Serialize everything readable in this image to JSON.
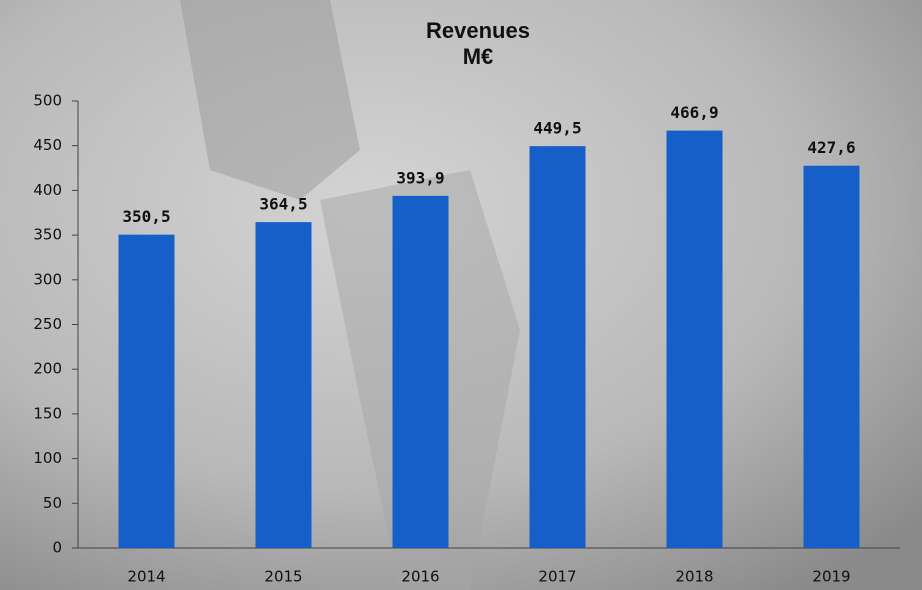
{
  "chart_data": {
    "type": "bar",
    "title": "Revenues",
    "subtitle": "M€",
    "categories": [
      "2014",
      "2015",
      "2016",
      "2017",
      "2018",
      "2019"
    ],
    "values": [
      350.5,
      364.5,
      393.9,
      449.5,
      466.9,
      427.6
    ],
    "value_labels": [
      "350,5",
      "364,5",
      "393,9",
      "449,5",
      "466,9",
      "427,6"
    ],
    "color": "#1560c8",
    "ylim": [
      0,
      500
    ],
    "yticks": [
      0,
      50,
      100,
      150,
      200,
      250,
      300,
      350,
      400,
      450,
      500
    ],
    "grid": false
  }
}
